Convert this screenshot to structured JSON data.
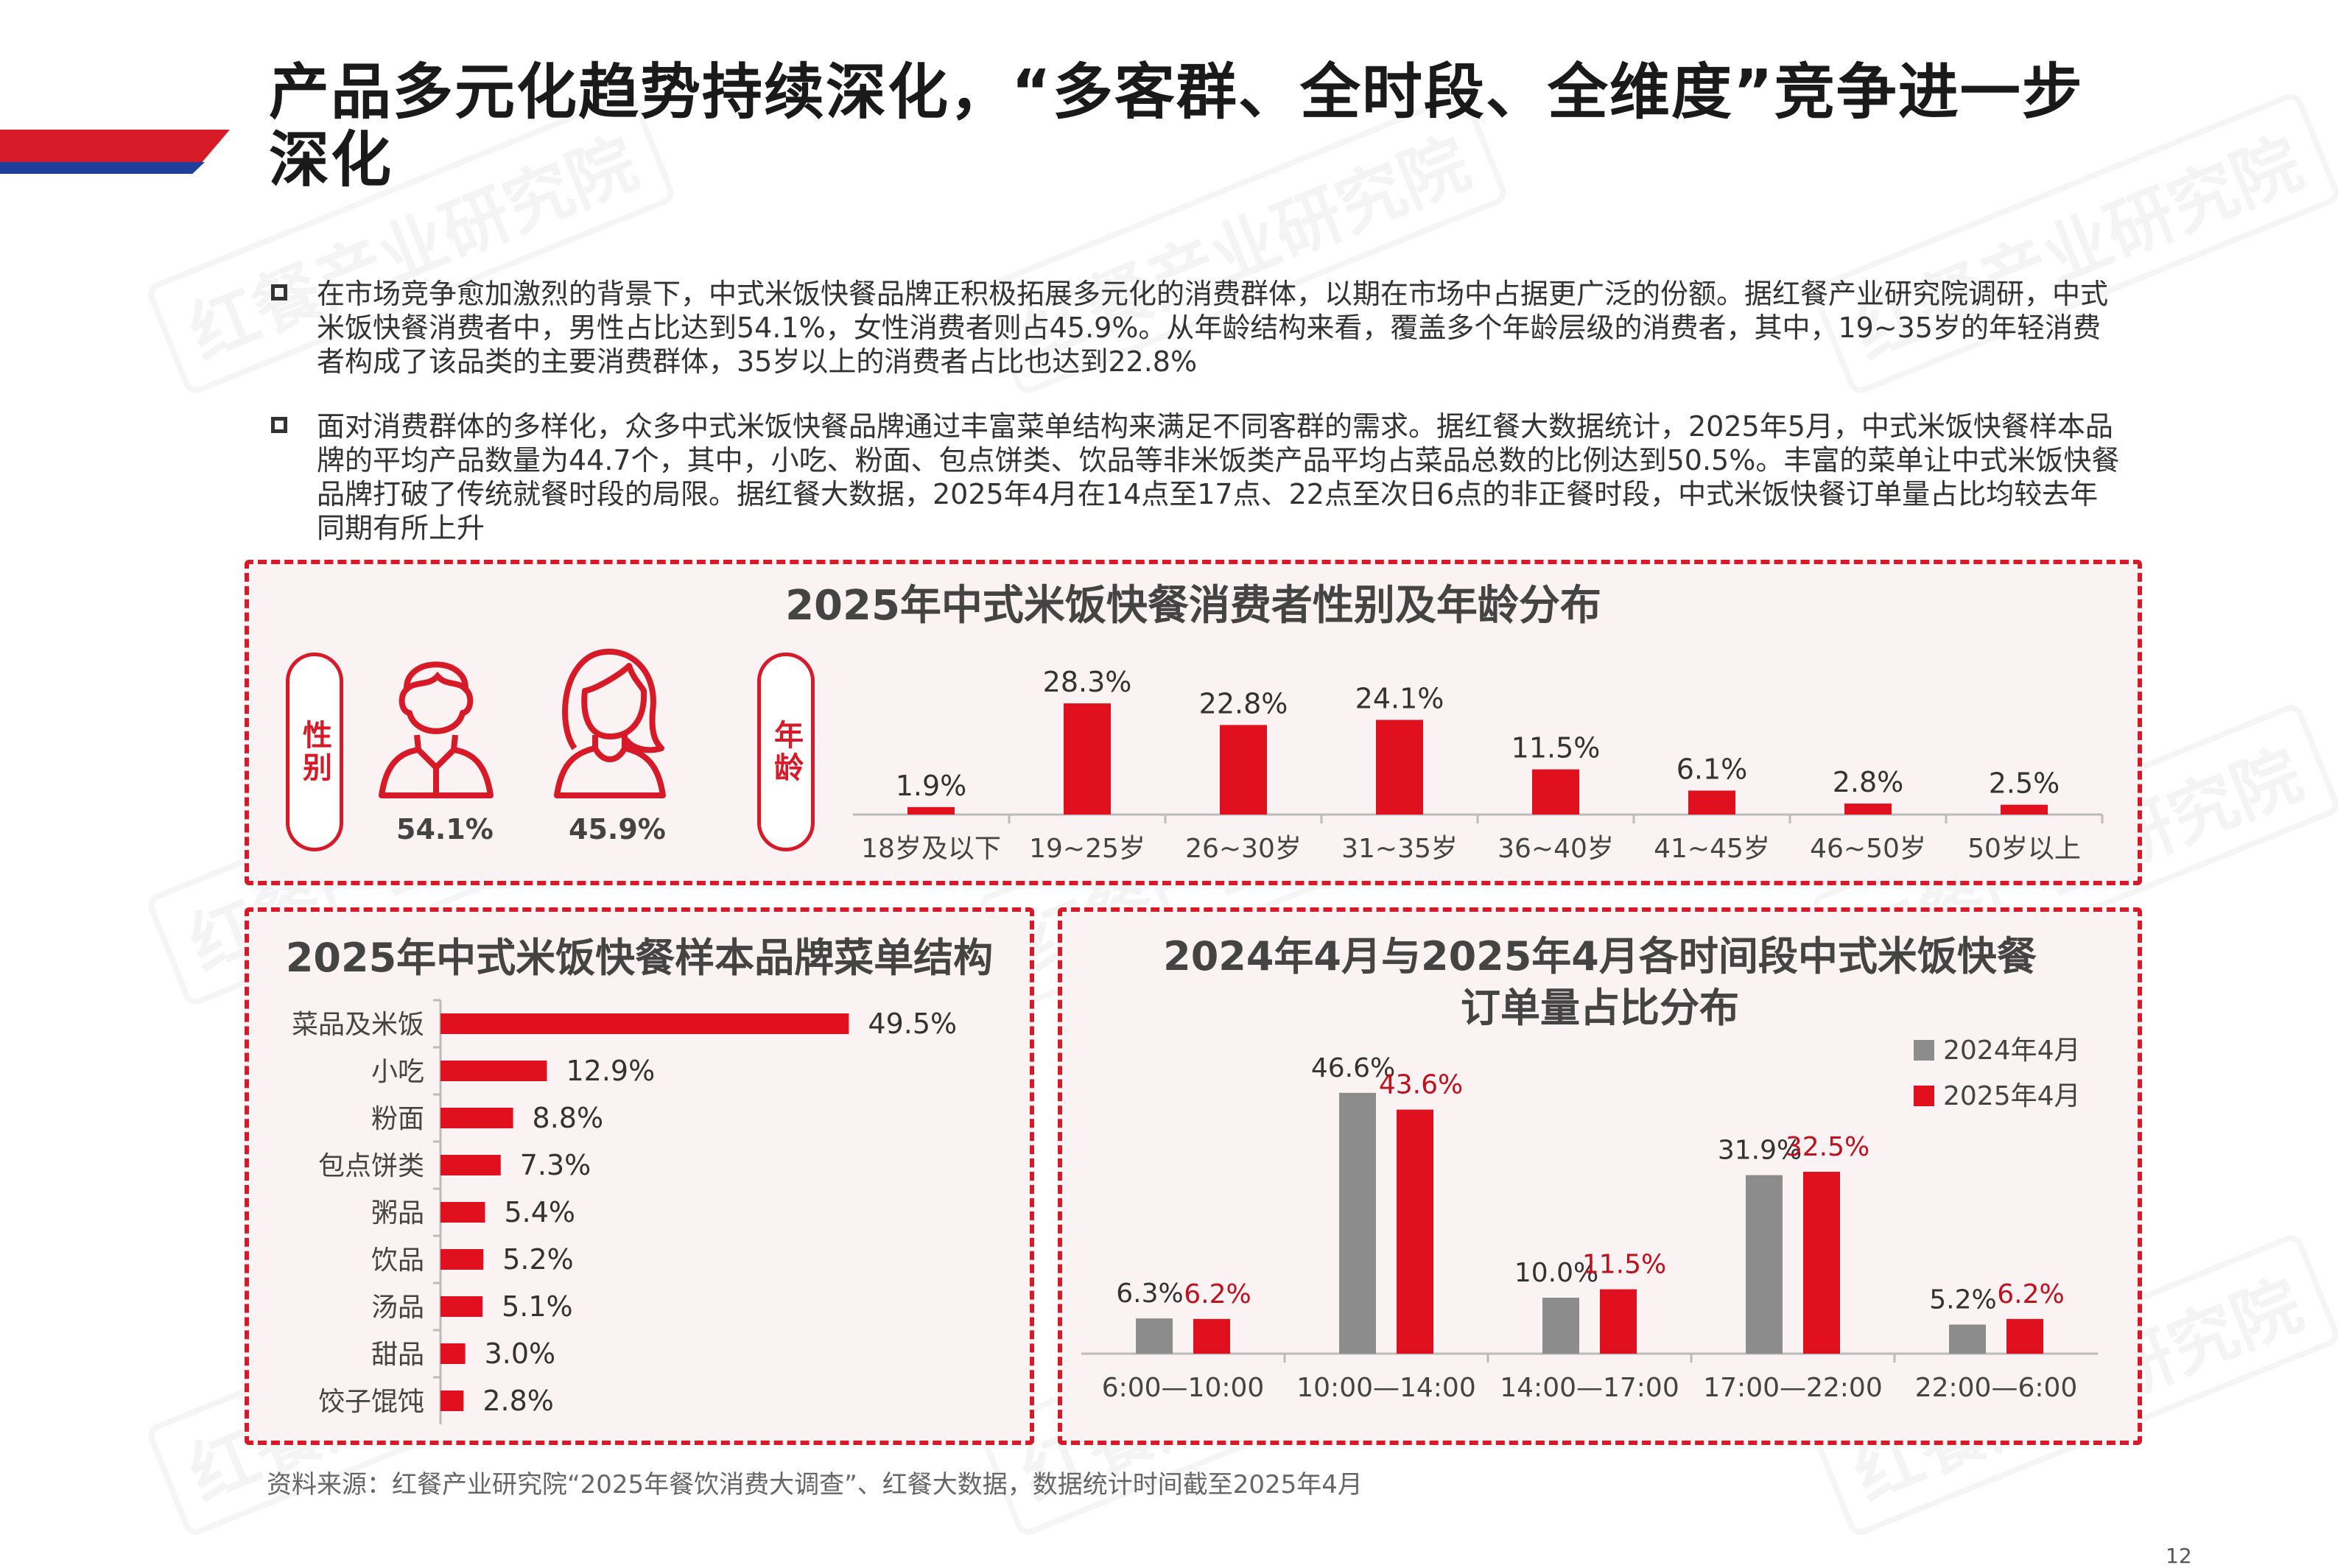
{
  "header": {
    "title": "产品多元化趋势持续深化，“多客群、全时段、全维度”竞争进一步深化",
    "watermark": "红餐产业研究院",
    "colors": {
      "accent_red": "#d61a27",
      "accent_blue": "#1f3f99"
    }
  },
  "bullets": [
    {
      "text": "在市场竞争愈加激烈的背景下，中式米饭快餐品牌正积极拓展多元化的消费群体，以期在市场中占据更广泛的份额。据红餐产业研究院调研，中式米饭快餐消费者中，男性占比达到54.1%，女性消费者则占45.9%。从年龄结构来看，覆盖多个年龄层级的消费者，其中，19~35岁的年轻消费者构成了该品类的主要消费群体，35岁以上的消费者占比也达到22.8%"
    },
    {
      "text": "面对消费群体的多样化，众多中式米饭快餐品牌通过丰富菜单结构来满足不同客群的需求。据红餐大数据统计，2025年5月，中式米饭快餐样本品牌的平均产品数量为44.7个，其中，小吃、粉面、包点饼类、饮品等非米饭类产品平均占菜品总数的比例达到50.5%。丰富的菜单让中式米饭快餐品牌打破了传统就餐时段的局限。据红餐大数据，2025年4月在14点至17点、22点至次日6点的非正餐时段，中式米饭快餐订单量占比均较去年同期有所上升"
    }
  ],
  "gender_panel": {
    "title": "2025年中式米饭快餐消费者性别及年龄分布",
    "gender_label": "性别",
    "age_label": "年龄",
    "male_icon": "male-user-icon",
    "female_icon": "female-user-icon",
    "male_pct": "54.1%",
    "female_pct": "45.9%"
  },
  "chart_data": [
    {
      "type": "bar",
      "title": "2025年中式米饭快餐消费者性别及年龄分布",
      "categories": [
        "18岁及以下",
        "19~25岁",
        "26~30岁",
        "31~35岁",
        "36~40岁",
        "41~45岁",
        "46~50岁",
        "50岁以上"
      ],
      "values": [
        1.9,
        28.3,
        22.8,
        24.1,
        11.5,
        6.1,
        2.8,
        2.5
      ],
      "labels": [
        "1.9%",
        "28.3%",
        "22.8%",
        "24.1%",
        "11.5%",
        "6.1%",
        "2.8%",
        "2.5%"
      ],
      "ylim": [
        0,
        30
      ],
      "color": "#e0101e",
      "grid": false
    },
    {
      "type": "bar",
      "orientation": "horizontal",
      "title": "2025年中式米饭快餐样本品牌菜单结构",
      "categories": [
        "菜品及米饭",
        "小吃",
        "粉面",
        "包点饼类",
        "粥品",
        "饮品",
        "汤品",
        "甜品",
        "饺子馄饨"
      ],
      "values": [
        49.5,
        12.9,
        8.8,
        7.3,
        5.4,
        5.2,
        5.1,
        3.0,
        2.8
      ],
      "labels": [
        "49.5%",
        "12.9%",
        "8.8%",
        "7.3%",
        "5.4%",
        "5.2%",
        "5.1%",
        "3.0%",
        "2.8%"
      ],
      "xlim": [
        0,
        50
      ],
      "color": "#e0101e",
      "grid": false
    },
    {
      "type": "bar",
      "title": "2024年4月与2025年4月各时间段中式米饭快餐订单量占比分布",
      "title_lines": [
        "2024年4月与2025年4月各时间段中式米饭快餐",
        "订单量占比分布"
      ],
      "categories": [
        "6:00—10:00",
        "10:00—14:00",
        "14:00—17:00",
        "17:00—22:00",
        "22:00—6:00"
      ],
      "series": [
        {
          "name": "2024年4月",
          "values": [
            6.3,
            46.6,
            10.0,
            31.9,
            5.2
          ],
          "labels": [
            "6.3%",
            "46.6%",
            "10.0%",
            "31.9%",
            "5.2%"
          ],
          "color": "#8c8c8c"
        },
        {
          "name": "2025年4月",
          "values": [
            6.2,
            43.6,
            11.5,
            32.5,
            6.2
          ],
          "labels": [
            "6.2%",
            "43.6%",
            "11.5%",
            "32.5%",
            "6.2%"
          ],
          "color": "#e0101e"
        }
      ],
      "ylim": [
        0,
        50
      ],
      "legend": "top-right",
      "grid": false
    }
  ],
  "footer": {
    "source": "资料来源：红餐产业研究院“2025年餐饮消费大调查”、红餐大数据，数据统计时间截至2025年4月",
    "page_number": "12"
  }
}
